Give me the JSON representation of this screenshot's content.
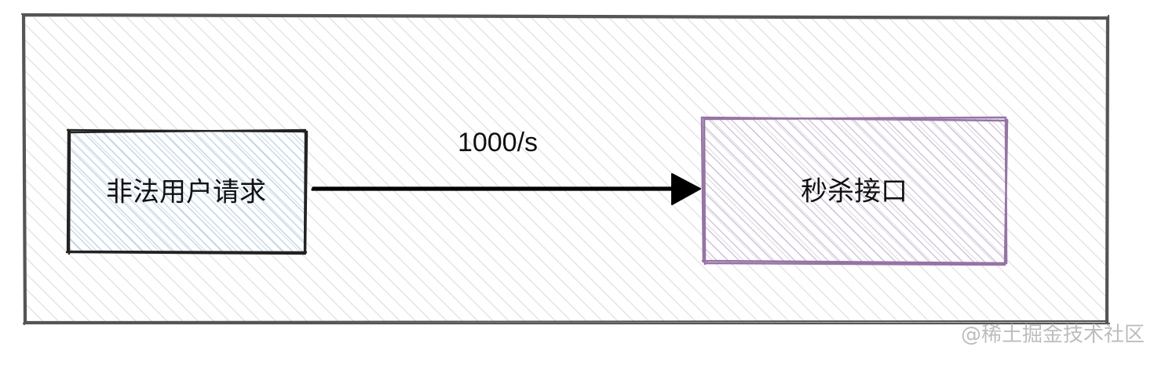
{
  "diagram": {
    "source_node": {
      "label": "非法用户请求",
      "fill_color": "#a8ccf0",
      "stroke_color": "#222222"
    },
    "target_node": {
      "label": "秒杀接口",
      "fill_color": "#b59bc9",
      "stroke_color": "#9673a6"
    },
    "edge": {
      "label": "1000/s",
      "color": "#000000"
    },
    "container": {
      "fill_color": "#d8d8d8",
      "stroke_color": "#555555"
    }
  },
  "watermark": {
    "text": "@稀土掘金技术社区"
  }
}
